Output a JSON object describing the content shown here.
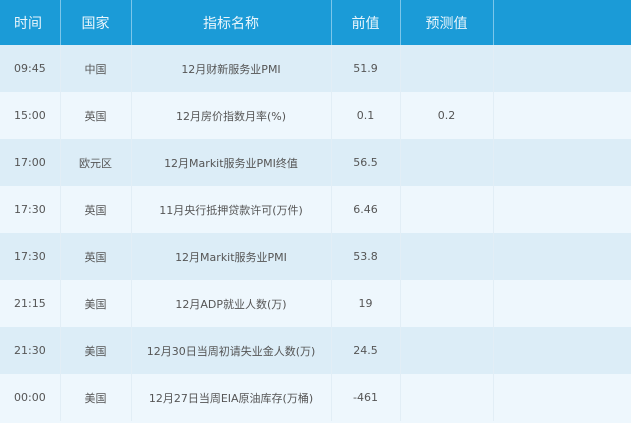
{
  "header": [
    "时间",
    "国家",
    "指标名称",
    "前值",
    "预测值",
    ""
  ],
  "rows": [
    {
      "time": "09:45",
      "country": "中国",
      "indicator": "12月财新服务业PMI",
      "previous": "51.9",
      "forecast": ""
    },
    {
      "time": "15:00",
      "country": "英国",
      "indicator": "12月房价指数月率(%)",
      "previous": "0.1",
      "forecast": "0.2"
    },
    {
      "time": "17:00",
      "country": "欧元区",
      "indicator": "12月Markit服务业PMI终值",
      "previous": "56.5",
      "forecast": ""
    },
    {
      "time": "17:30",
      "country": "英国",
      "indicator": "11月央行抵押贷款许可(万件)",
      "previous": "6.46",
      "forecast": ""
    },
    {
      "time": "17:30",
      "country": "英国",
      "indicator": "12月Markit服务业PMI",
      "previous": "53.8",
      "forecast": ""
    },
    {
      "time": "21:15",
      "country": "美国",
      "indicator": "12月ADP就业人数(万)",
      "previous": "19",
      "forecast": ""
    },
    {
      "time": "21:30",
      "country": "美国",
      "indicator": "12月30日当周初请失业金人数(万)",
      "previous": "24.5",
      "forecast": ""
    },
    {
      "time": "00:00",
      "country": "美国",
      "indicator": "12月27日当周EIA原油库存(万桶)",
      "previous": "-461",
      "forecast": ""
    }
  ],
  "colors": {
    "header": "#1b9bd7",
    "row_dark": "#dcedf7",
    "row_light": "#eef7fd"
  }
}
